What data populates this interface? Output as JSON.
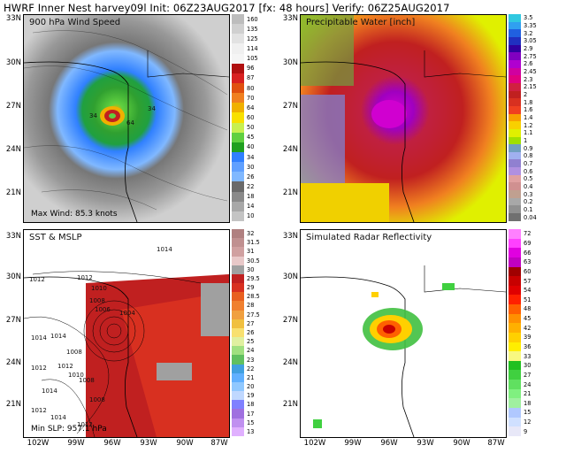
{
  "header": {
    "title": "HWRF Inner Nest harvey09l Init: 06Z23AUG2017 [fx: 48 hours] Verify: 06Z25AUG2017"
  },
  "panels": {
    "wind": {
      "title": "900 hPa Wind Speed",
      "footer": "Max Wind: 85.3 knots",
      "scale": [
        "160",
        "135",
        "125",
        "114",
        "105",
        "96",
        "87",
        "80",
        "70",
        "64",
        "60",
        "50",
        "45",
        "40",
        "34",
        "30",
        "26",
        "22",
        "18",
        "14",
        "10"
      ],
      "colors": [
        "#bdbdbd",
        "#d0d0d0",
        "#e2e2e2",
        "#f0f0f0",
        "#f5f5f5",
        "#b01010",
        "#d82020",
        "#e05010",
        "#f08020",
        "#f0b000",
        "#f8e000",
        "#c8f050",
        "#60d040",
        "#20a020",
        "#3080ff",
        "#60a0ff",
        "#80b8ff",
        "#6a6a6a",
        "#8a8a8a",
        "#a8a8a8",
        "#c4c4c4"
      ],
      "map_labels": [
        "34",
        "64",
        "34"
      ]
    },
    "pw": {
      "title": "Precipitable Water [inch]",
      "scale": [
        "3.5",
        "3.35",
        "3.2",
        "3.05",
        "2.9",
        "2.75",
        "2.6",
        "2.45",
        "2.3",
        "2.15",
        "2",
        "1.8",
        "1.6",
        "1.4",
        "1.2",
        "1.1",
        "1",
        "0.9",
        "0.8",
        "0.7",
        "0.6",
        "0.5",
        "0.4",
        "0.3",
        "0.2",
        "0.1",
        "0.04"
      ],
      "colors": [
        "#30c8e0",
        "#30a0f0",
        "#2060e0",
        "#2030c0",
        "#3000a0",
        "#8000c0",
        "#b000d0",
        "#d000a0",
        "#e00080",
        "#d02040",
        "#c02020",
        "#d83020",
        "#f04020",
        "#f8a000",
        "#f8d000",
        "#e0f000",
        "#a0e000",
        "#70a0c0",
        "#a0b0f0",
        "#9080d0",
        "#b090e0",
        "#e0a0a0",
        "#d09090",
        "#c0a090",
        "#a8a8a8",
        "#909090",
        "#707070"
      ]
    },
    "sst": {
      "title": "SST & MSLP",
      "footer": "Min SLP: 957.1 hPa",
      "scale": [
        "32",
        "31.5",
        "31",
        "30.5",
        "30",
        "29.5",
        "29",
        "28.5",
        "28",
        "27.5",
        "27",
        "26",
        "25",
        "24",
        "23",
        "22",
        "21",
        "20",
        "19",
        "18",
        "17",
        "15",
        "13"
      ],
      "colors": [
        "#b08080",
        "#c09090",
        "#d0a0a0",
        "#e8c8c8",
        "#a0a0a0",
        "#c02020",
        "#d83020",
        "#e86020",
        "#f08030",
        "#f0a040",
        "#f0c040",
        "#f8e070",
        "#e0f0a0",
        "#a0e080",
        "#60c060",
        "#40a0e0",
        "#60b0ff",
        "#90c8ff",
        "#c0d8ff",
        "#8080ff",
        "#a070e0",
        "#c090f0",
        "#e0b0ff"
      ],
      "isobars": [
        "1014",
        "1012",
        "1012",
        "1010",
        "1008",
        "1006",
        "1004",
        "1014",
        "1014",
        "1008",
        "1012",
        "1012",
        "1010",
        "1008",
        "1008",
        "1012",
        "1014",
        "1014",
        "1012"
      ]
    },
    "radar": {
      "title": "Simulated Radar Reflectivity",
      "scale": [
        "72",
        "69",
        "66",
        "63",
        "60",
        "57",
        "54",
        "51",
        "48",
        "45",
        "42",
        "39",
        "36",
        "33",
        "30",
        "27",
        "24",
        "21",
        "18",
        "15",
        "12",
        "9"
      ],
      "colors": [
        "#ff80ff",
        "#ff40ff",
        "#e000e0",
        "#c000c0",
        "#a00000",
        "#c80000",
        "#e00000",
        "#ff2000",
        "#ff6000",
        "#ff9000",
        "#ffb000",
        "#ffd000",
        "#ffee00",
        "#f8f880",
        "#20c020",
        "#40d040",
        "#60e060",
        "#80f080",
        "#a0f0a0",
        "#b0c8ff",
        "#d0e0ff",
        "#e8e8f8"
      ]
    }
  },
  "axes": {
    "lat": [
      "33N",
      "30N",
      "27N",
      "24N",
      "21N"
    ],
    "lon": [
      "102W",
      "99W",
      "96W",
      "93W",
      "90W",
      "87W"
    ]
  }
}
